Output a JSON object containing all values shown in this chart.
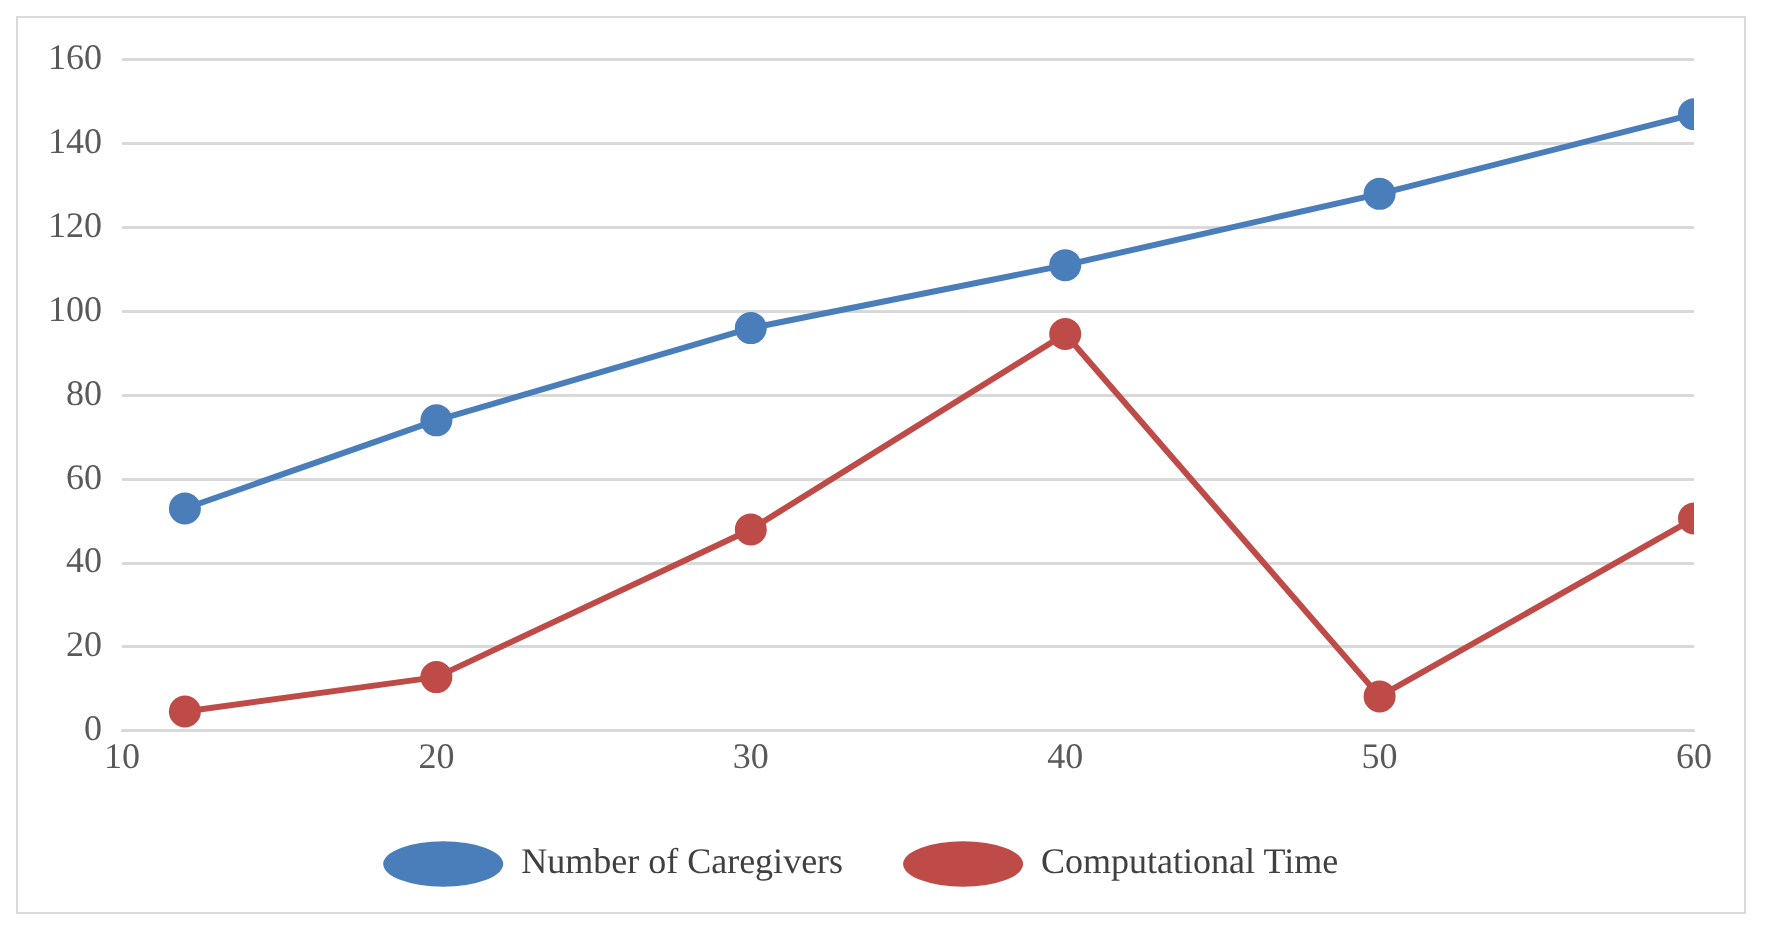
{
  "chart_data": {
    "type": "line",
    "x": [
      12,
      20,
      30,
      40,
      50,
      60
    ],
    "series": [
      {
        "name": "Number of Caregivers",
        "color": "#4a7ebb",
        "values": [
          53,
          74,
          96,
          111,
          128,
          147
        ]
      },
      {
        "name": "Computational Time",
        "color": "#be4b48",
        "values": [
          4.6,
          12.8,
          48,
          94.6,
          8.2,
          50.6
        ]
      }
    ],
    "xlim": [
      10,
      60
    ],
    "xticks": [
      10,
      20,
      30,
      40,
      50,
      60
    ],
    "ylim": [
      0,
      160
    ],
    "yticks": [
      0,
      20,
      40,
      60,
      80,
      100,
      120,
      140,
      160
    ],
    "grid": "y",
    "legend": "bottom",
    "marker": "circle",
    "line_style": "solid"
  }
}
